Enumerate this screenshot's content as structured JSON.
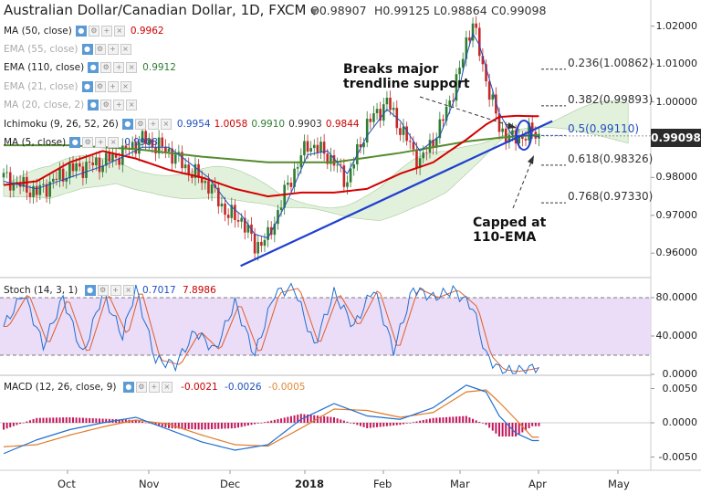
{
  "header": {
    "title": "Australian Dollar/Canadian Dollar, 1D, FXCM",
    "open": "O0.98907",
    "high": "H0.99125",
    "low": "L0.98864",
    "close": "C0.99098"
  },
  "indicators": [
    {
      "label": "MA (50, close)",
      "values": [
        "0.9962"
      ],
      "colors": [
        "#cc0000"
      ],
      "faded": false
    },
    {
      "label": "EMA (55, close)",
      "values": [],
      "colors": [],
      "faded": true
    },
    {
      "label": "EMA (110, close)",
      "values": [
        "0.9912"
      ],
      "colors": [
        "#2e7d32"
      ],
      "faded": false
    },
    {
      "label": "EMA (21, close)",
      "values": [],
      "colors": [],
      "faded": true
    },
    {
      "label": "MA (20, close, 2)",
      "values": [],
      "colors": [],
      "faded": true
    },
    {
      "label": "Ichimoku (9, 26, 52, 26)",
      "values": [
        "0.9954",
        "1.0058",
        "0.9910",
        "0.9903",
        "0.9844"
      ],
      "colors": [
        "#1f4fbf",
        "#cc0000",
        "#2e7d32",
        "#333333",
        "#cc0000"
      ],
      "faded": false
    },
    {
      "label": "MA (5, close)",
      "values": [
        "0.9908"
      ],
      "colors": [
        "#1f4fbf"
      ],
      "faded": false
    }
  ],
  "stoch": {
    "label": "Stoch (14, 3, 1)",
    "values": [
      "0.7017",
      "7.8986"
    ],
    "colors": [
      "#1f4fbf",
      "#cc0000"
    ]
  },
  "macd": {
    "label": "MACD (12, 26, close, 9)",
    "values": [
      "-0.0021",
      "-0.0026",
      "-0.0005"
    ],
    "colors": [
      "#cc0000",
      "#1f4fbf",
      "#e08a3c"
    ]
  },
  "annotations": {
    "breaks": [
      "Breaks major",
      "trendline support"
    ],
    "capped": [
      "Capped at",
      "110-EMA"
    ]
  },
  "fib_levels": [
    {
      "label": "0.236(1.00862)",
      "price": 1.00862,
      "color": "#333333"
    },
    {
      "label": "0.382(0.99893)",
      "price": 0.99893,
      "color": "#333333"
    },
    {
      "label": "0.5(0.99110)",
      "price": 0.9911,
      "color": "#1f4fbf"
    },
    {
      "label": "0.618(0.98326)",
      "price": 0.98326,
      "color": "#333333"
    },
    {
      "label": "0.768(0.97330)",
      "price": 0.9733,
      "color": "#333333"
    }
  ],
  "current_price": "0.99098",
  "colors": {
    "bull_candle": "#2e7d32",
    "bear_candle": "#c62828",
    "ma50": "#d50000",
    "ema110": "#558b2f",
    "ma5": "#1f4fbf",
    "trendline": "#1f3fd0",
    "stoch_band": "#e7d6f7",
    "macd_hist": "#c2185b",
    "cloud_green": "#cfe8c4",
    "cloud_red": "#f6d0d0"
  },
  "chart_data": {
    "type": "candlestick",
    "title": "Australian Dollar/Canadian Dollar, 1D, FXCM",
    "x_ticks": [
      "Oct",
      "Nov",
      "Dec",
      "2018",
      "Feb",
      "Mar",
      "Apr",
      "May"
    ],
    "price_ticks": [
      "1.02000",
      "1.01000",
      "1.00000",
      "0.99000",
      "0.98000",
      "0.97000",
      "0.96000"
    ],
    "price_range": [
      0.9545,
      1.0245
    ],
    "stoch_ticks": [
      "80.0000",
      "40.0000",
      "0.0000"
    ],
    "stoch_range": [
      0,
      100
    ],
    "macd_ticks": [
      "0.0050",
      "0.0000",
      "-0.0050"
    ],
    "macd_range": [
      -0.0068,
      0.0068
    ],
    "price_anchors": {
      "x": [
        0,
        10,
        20,
        30,
        35,
        42,
        50,
        56,
        62,
        68,
        72,
        76,
        80,
        86,
        92,
        98,
        104,
        110,
        116,
        120,
        126,
        132,
        138,
        140,
        142,
        144,
        146,
        150,
        154,
        160,
        162
      ],
      "y": [
        0.98,
        0.976,
        0.982,
        0.984,
        0.986,
        0.99,
        0.987,
        0.982,
        0.978,
        0.97,
        0.969,
        0.962,
        0.964,
        0.978,
        0.989,
        0.986,
        0.979,
        0.994,
        1.0,
        0.993,
        0.984,
        0.993,
        1.008,
        1.016,
        1.021,
        1.013,
        1.006,
        0.993,
        0.99,
        0.992,
        0.991
      ]
    },
    "ma50_anchors": {
      "x": [
        0,
        10,
        20,
        30,
        40,
        50,
        60,
        70,
        80,
        90,
        100,
        110,
        120,
        130,
        140,
        146,
        150,
        155,
        160
      ],
      "y": [
        0.978,
        0.979,
        0.984,
        0.987,
        0.985,
        0.982,
        0.98,
        0.977,
        0.975,
        0.976,
        0.976,
        0.977,
        0.981,
        0.984,
        0.99,
        0.994,
        0.996,
        0.9963,
        0.9962
      ]
    },
    "ema110_anchors": {
      "x": [
        0,
        20,
        40,
        60,
        80,
        100,
        120,
        140,
        150,
        160
      ],
      "y": [
        0.9885,
        0.9885,
        0.9875,
        0.9855,
        0.984,
        0.984,
        0.9865,
        0.9895,
        0.9905,
        0.9912
      ]
    },
    "ma5_anchors": {
      "x": [
        0,
        10,
        20,
        30,
        35,
        42,
        50,
        56,
        62,
        68,
        72,
        76,
        80,
        86,
        92,
        98,
        104,
        110,
        116,
        120,
        126,
        132,
        138,
        140,
        142,
        144,
        146,
        150,
        154,
        160,
        162
      ],
      "y": [
        0.979,
        0.977,
        0.98,
        0.983,
        0.985,
        0.988,
        0.988,
        0.984,
        0.98,
        0.973,
        0.97,
        0.965,
        0.964,
        0.974,
        0.986,
        0.987,
        0.981,
        0.991,
        0.998,
        0.995,
        0.987,
        0.991,
        1.004,
        1.012,
        1.018,
        1.015,
        1.009,
        0.997,
        0.991,
        0.991,
        0.9908
      ]
    },
    "trendline": {
      "x": [
        80,
        155
      ],
      "y": [
        0.9566,
        0.9925
      ]
    },
    "stoch_anchors": {
      "x": [
        0,
        6,
        12,
        18,
        24,
        30,
        36,
        40,
        46,
        52,
        58,
        64,
        70,
        76,
        82,
        88,
        94,
        100,
        106,
        112,
        118,
        124,
        130,
        136,
        142,
        146,
        150,
        154,
        158,
        162
      ],
      "y": [
        50,
        85,
        30,
        80,
        20,
        85,
        40,
        90,
        15,
        10,
        45,
        25,
        75,
        20,
        85,
        90,
        30,
        85,
        50,
        90,
        25,
        90,
        80,
        88,
        70,
        20,
        5,
        3,
        5,
        8
      ]
    },
    "macd_anchors": {
      "x": [
        0,
        10,
        20,
        30,
        40,
        50,
        60,
        70,
        80,
        90,
        100,
        110,
        120,
        130,
        140,
        146,
        150,
        155,
        160
      ],
      "y": [
        -0.0045,
        -0.0025,
        -0.001,
        0.0,
        0.0008,
        -0.001,
        -0.0028,
        -0.004,
        -0.0032,
        0.0005,
        0.0028,
        0.001,
        0.0005,
        0.0022,
        0.0055,
        0.0045,
        0.001,
        -0.0015,
        -0.0026
      ]
    },
    "macd_signal_anchors": {
      "x": [
        0,
        10,
        20,
        30,
        40,
        50,
        60,
        70,
        80,
        90,
        100,
        110,
        120,
        130,
        140,
        146,
        150,
        155,
        160
      ],
      "y": [
        -0.0035,
        -0.0032,
        -0.0018,
        -0.0006,
        0.0004,
        -0.0002,
        -0.0018,
        -0.0032,
        -0.0034,
        -0.0008,
        0.002,
        0.0018,
        0.0008,
        0.0015,
        0.0045,
        0.0048,
        0.003,
        0.0005,
        -0.0021
      ]
    }
  }
}
